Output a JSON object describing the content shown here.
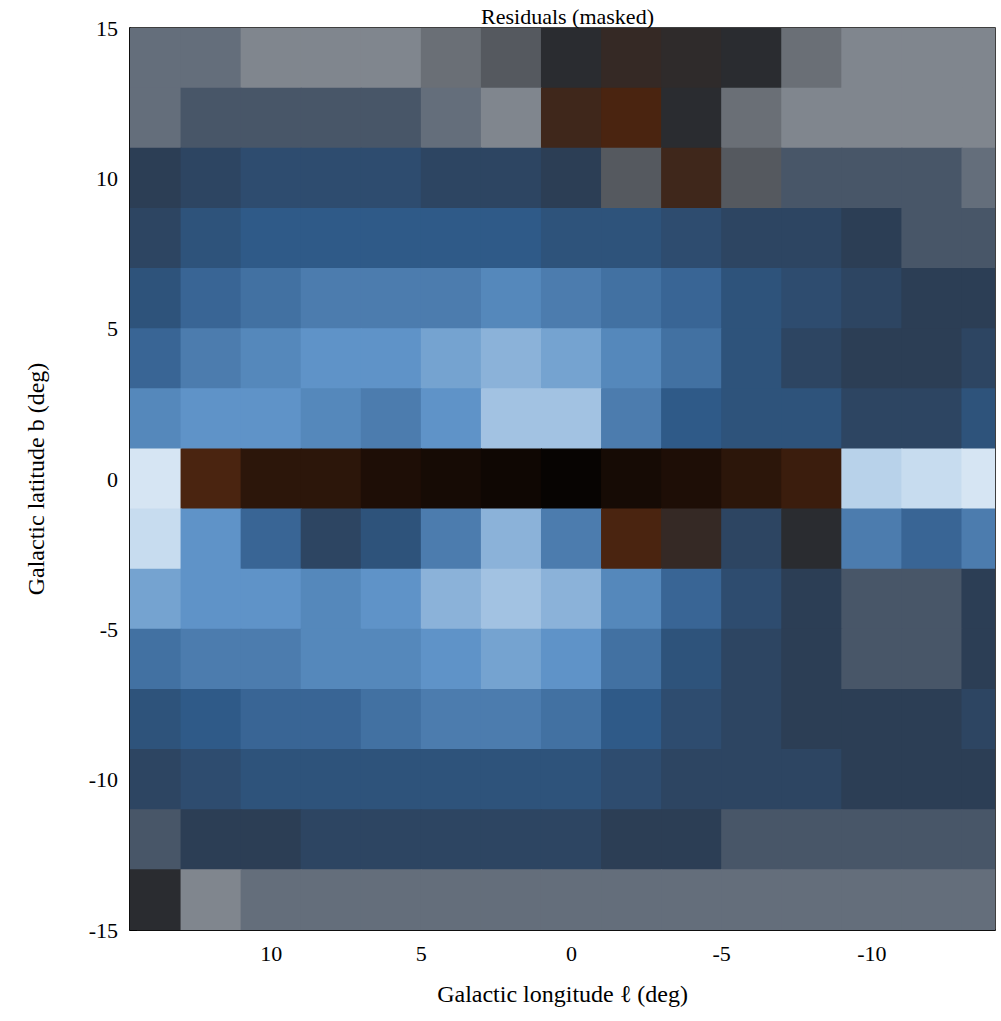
{
  "chart_data": {
    "type": "heatmap",
    "title": "Residuals (masked)",
    "x_label": "Galactic longitude ℓ (deg)",
    "y_label": "Galactic latitude b (deg)",
    "x": [
      14,
      12,
      10,
      8,
      6,
      4,
      2,
      0,
      -2,
      -4,
      -6,
      -8,
      -10,
      -12,
      -14
    ],
    "y": [
      14,
      12,
      10,
      8,
      6,
      4,
      2,
      0,
      -2,
      -4,
      -6,
      -8,
      -10,
      -12,
      -14
    ],
    "cells": [
      [
        0.05,
        0.05,
        0.0,
        0.0,
        0.0,
        -0.05,
        -0.1,
        -0.2,
        -0.3,
        -0.25,
        -0.2,
        -0.05,
        0.0,
        0.0,
        0.0
      ],
      [
        0.05,
        0.1,
        0.1,
        0.1,
        0.1,
        0.05,
        0.0,
        -0.4,
        -0.5,
        -0.2,
        -0.05,
        0.0,
        0.0,
        0.0,
        0.0
      ],
      [
        0.15,
        0.2,
        0.25,
        0.25,
        0.25,
        0.2,
        0.2,
        0.15,
        -0.1,
        -0.4,
        -0.1,
        0.1,
        0.1,
        0.1,
        0.05
      ],
      [
        0.2,
        0.3,
        0.35,
        0.35,
        0.35,
        0.35,
        0.35,
        0.3,
        0.3,
        0.25,
        0.2,
        0.2,
        0.15,
        0.1,
        0.1
      ],
      [
        0.3,
        0.4,
        0.45,
        0.5,
        0.5,
        0.5,
        0.55,
        0.5,
        0.45,
        0.4,
        0.3,
        0.25,
        0.2,
        0.15,
        0.15
      ],
      [
        0.4,
        0.5,
        0.55,
        0.6,
        0.6,
        0.65,
        0.7,
        0.65,
        0.55,
        0.45,
        0.3,
        0.2,
        0.15,
        0.15,
        0.2
      ],
      [
        0.55,
        0.6,
        0.6,
        0.55,
        0.5,
        0.6,
        0.75,
        0.75,
        0.5,
        0.35,
        0.3,
        0.3,
        0.2,
        0.2,
        0.3
      ],
      [
        0.9,
        -0.5,
        -0.7,
        -0.7,
        -0.8,
        -0.85,
        -0.9,
        -0.95,
        -0.85,
        -0.8,
        -0.7,
        -0.6,
        0.8,
        0.85,
        0.9
      ],
      [
        0.85,
        0.6,
        0.4,
        0.2,
        0.3,
        0.5,
        0.7,
        0.5,
        -0.5,
        -0.3,
        0.2,
        -0.2,
        0.5,
        0.4,
        0.5
      ],
      [
        0.65,
        0.6,
        0.6,
        0.55,
        0.6,
        0.7,
        0.75,
        0.7,
        0.55,
        0.4,
        0.25,
        0.15,
        0.1,
        0.1,
        0.15
      ],
      [
        0.45,
        0.5,
        0.5,
        0.55,
        0.55,
        0.6,
        0.65,
        0.6,
        0.45,
        0.3,
        0.2,
        0.15,
        0.1,
        0.1,
        0.15
      ],
      [
        0.3,
        0.35,
        0.4,
        0.4,
        0.45,
        0.5,
        0.5,
        0.45,
        0.35,
        0.25,
        0.2,
        0.15,
        0.15,
        0.15,
        0.2
      ],
      [
        0.2,
        0.25,
        0.3,
        0.3,
        0.3,
        0.3,
        0.3,
        0.3,
        0.25,
        0.2,
        0.2,
        0.2,
        0.15,
        0.15,
        0.15
      ],
      [
        0.1,
        0.15,
        0.15,
        0.2,
        0.2,
        0.2,
        0.2,
        0.2,
        0.15,
        0.15,
        0.1,
        0.1,
        0.1,
        0.1,
        0.1
      ],
      [
        -0.2,
        0.0,
        0.05,
        0.05,
        0.05,
        0.05,
        0.05,
        0.05,
        0.05,
        0.05,
        0.05,
        0.05,
        0.05,
        0.05,
        0.05
      ]
    ],
    "cell_range": [
      -1,
      1
    ],
    "xlim": [
      14.7,
      -14.1
    ],
    "xticks": [
      10,
      5,
      0,
      -5,
      -10
    ],
    "ylim": [
      -15,
      15
    ],
    "yticks": [
      -15,
      -10,
      -5,
      0,
      5,
      10,
      15
    ],
    "grid": false
  }
}
